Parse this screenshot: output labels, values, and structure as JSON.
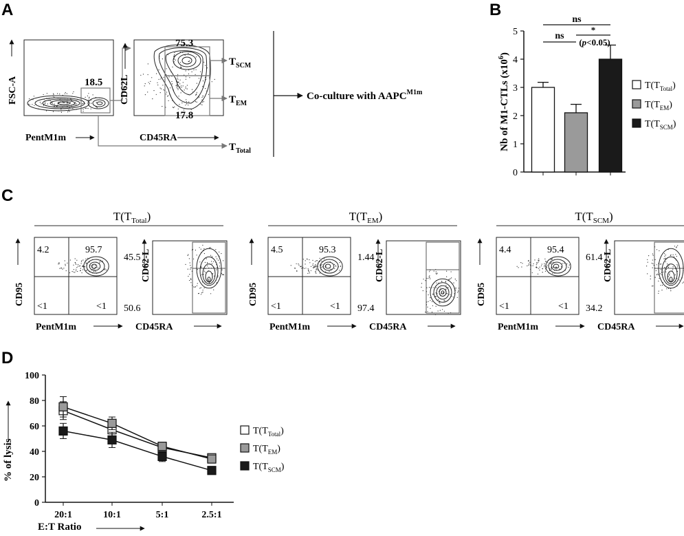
{
  "panels": {
    "A": "A",
    "B": "B",
    "C": "C",
    "D": "D"
  },
  "panelA": {
    "plot1": {
      "ylabel": "FSC-A",
      "xlabel": "PentM1m",
      "gate_value": "18.5"
    },
    "plot2": {
      "ylabel": "CD62L",
      "xlabel": "CD45RA",
      "gate_top_value": "75.3",
      "gate_bottom_value": "17.8"
    },
    "labels": {
      "tscm_main": "T",
      "tscm_sub": "SCM",
      "tem_main": "T",
      "tem_sub": "EM",
      "ttotal_main": "T",
      "ttotal_sub": "Total"
    },
    "coculture_text": "Co-culture with AAPC",
    "coculture_sup": "M1m"
  },
  "panelC": {
    "groups": [
      {
        "title_main": "T(T",
        "title_sub": "Total",
        "title_end": ")",
        "q_ul": "4.2",
        "q_ur": "95.7",
        "q_ll": "<1",
        "q_lr": "<1",
        "cd62_top": "45.5",
        "cd62_bottom": "50.6"
      },
      {
        "title_main": "T(T",
        "title_sub": "EM",
        "title_end": ")",
        "q_ul": "4.5",
        "q_ur": "95.3",
        "q_ll": "<1",
        "q_lr": "<1",
        "cd62_top": "1.44",
        "cd62_bottom": "97.4"
      },
      {
        "title_main": "T(T",
        "title_sub": "SCM",
        "title_end": ")",
        "q_ul": "4.4",
        "q_ur": "95.4",
        "q_ll": "<1",
        "q_lr": "<1",
        "cd62_top": "61.4",
        "cd62_bottom": "34.2"
      }
    ],
    "axis": {
      "cd95": "CD95",
      "pentm1m": "PentM1m",
      "cd62l": "CD62-L",
      "cd45ra": "CD45RA"
    }
  },
  "colors": {
    "white": "#ffffff",
    "gray": "#9a9a9a",
    "black": "#1a1a1a"
  },
  "chart_data": [
    {
      "type": "bar",
      "panel": "B",
      "title": "",
      "ylabel_main": "Nb of M1-CTLs (x10",
      "ylabel_sup": "6",
      "ylabel_end": ")",
      "categories": [
        "T(TTotal)",
        "T(TEM)",
        "T(TSCM)"
      ],
      "values": [
        3.0,
        2.1,
        4.0
      ],
      "errors": [
        0.18,
        0.3,
        0.5
      ],
      "ylim": [
        0,
        5
      ],
      "yticks": [
        "0",
        "1",
        "2",
        "3",
        "4",
        "5"
      ],
      "legend": [
        {
          "main": "T(T",
          "sub": "Total",
          "end": ")"
        },
        {
          "main": "T(T",
          "sub": "EM",
          "end": ")"
        },
        {
          "main": "T(T",
          "sub": "SCM",
          "end": ")"
        }
      ],
      "annotations": {
        "ns_top": "ns",
        "ns_left": "ns",
        "star": "*",
        "p_text": "(p<0.05)",
        "p_italic": "p",
        "p_rest": "<0.05)",
        "p_open": "("
      }
    },
    {
      "type": "line",
      "panel": "D",
      "xlabel": "E:T Ratio",
      "ylabel": "% of lysis",
      "x": [
        "20:1",
        "10:1",
        "5:1",
        "2.5:1"
      ],
      "ylim": [
        0,
        100
      ],
      "yticks": [
        "0",
        "20",
        "40",
        "60",
        "80",
        "100"
      ],
      "series": [
        {
          "name_main": "T(T",
          "name_sub": "Total",
          "name_end": ")",
          "values": [
            72,
            57,
            43,
            35
          ],
          "errors": [
            7,
            5,
            3,
            2
          ]
        },
        {
          "name_main": "T(T",
          "name_sub": "EM",
          "name_end": ")",
          "values": [
            75,
            62,
            44,
            34
          ],
          "errors": [
            8,
            5,
            3,
            2
          ]
        },
        {
          "name_main": "T(T",
          "name_sub": "SCM",
          "name_end": ")",
          "values": [
            56,
            49,
            36,
            25
          ],
          "errors": [
            6,
            6,
            4,
            2
          ]
        }
      ]
    }
  ]
}
